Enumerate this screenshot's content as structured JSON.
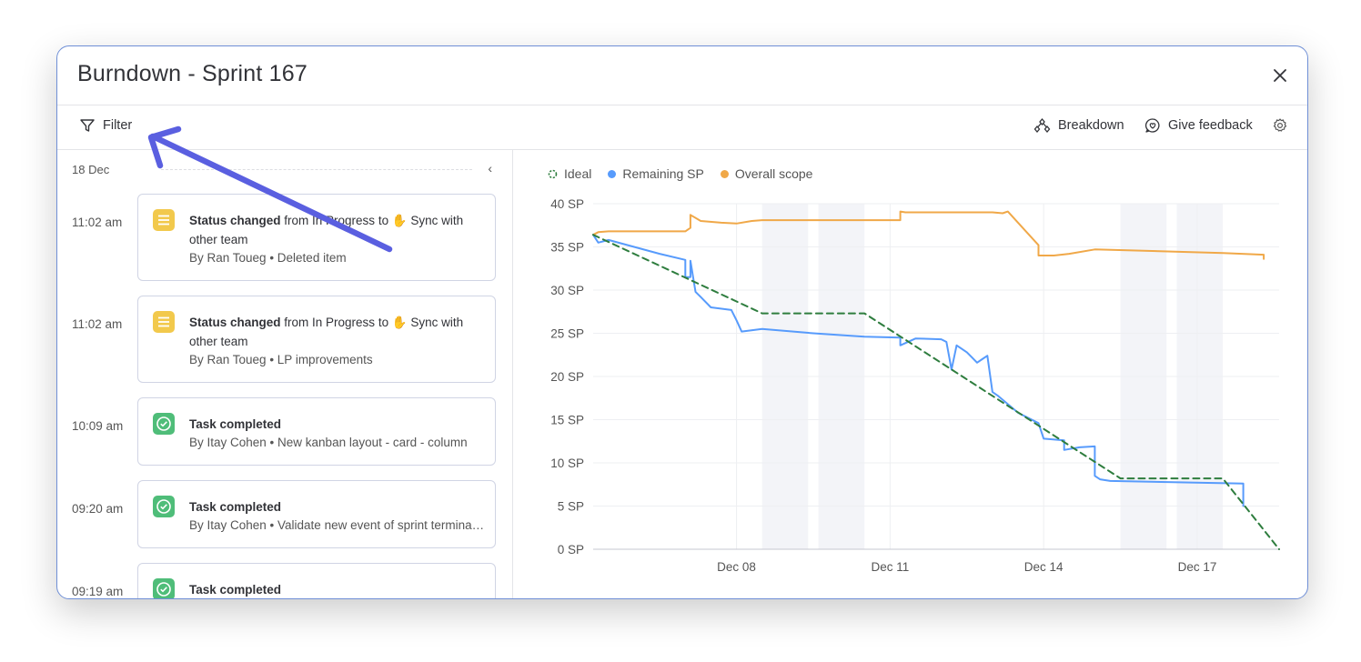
{
  "modal": {
    "title": "Burndown - Sprint 167"
  },
  "toolbar": {
    "filter_label": "Filter",
    "breakdown_label": "Breakdown",
    "feedback_label": "Give feedback"
  },
  "activity": {
    "date_label": "18 Dec",
    "items": [
      {
        "time": "11:02 am",
        "icon": "list-icon",
        "bold": "Status changed",
        "text": " from In Progress to ✋ Sync with other team",
        "by": "By Ran Toueg",
        "item": "Deleted item"
      },
      {
        "time": "11:02 am",
        "icon": "list-icon",
        "bold": "Status changed",
        "text": " from In Progress to ✋ Sync with other team",
        "by": "By Ran Toueg",
        "item": "LP improvements"
      },
      {
        "time": "10:09 am",
        "icon": "check-icon",
        "bold": "Task completed",
        "text": "",
        "by": "By Itay Cohen",
        "item": "New kanban layout - card - column"
      },
      {
        "time": "09:20 am",
        "icon": "check-icon",
        "bold": "Task completed",
        "text": "",
        "by": "By Itay Cohen",
        "item": "Validate new event of sprint termination"
      },
      {
        "time": "09:19 am",
        "icon": "check-icon",
        "bold": "Task completed",
        "text": "",
        "by": "",
        "item": ""
      }
    ]
  },
  "colors": {
    "ideal": "#2e7d3e",
    "remaining": "#579bfc",
    "scope": "#f0a848",
    "status_icon": "#f2c94c",
    "done_icon": "#4fbd79",
    "annotation_arrow": "#5a5fe0"
  },
  "chart_data": {
    "type": "line",
    "legend": [
      "Ideal",
      "Remaining SP",
      "Overall scope"
    ],
    "ylim": [
      0,
      40
    ],
    "yticks": [
      "0 SP",
      "5 SP",
      "10 SP",
      "15 SP",
      "20 SP",
      "25 SP",
      "30 SP",
      "35 SP",
      "40 SP"
    ],
    "xticks": [
      "Dec 08",
      "Dec 11",
      "Dec 14",
      "Dec 17"
    ],
    "xlim": [
      5.2,
      18.6
    ],
    "xtick_values": [
      8,
      11,
      14,
      17
    ],
    "weekend_bands": [
      [
        8.5,
        9.4
      ],
      [
        9.6,
        10.5
      ],
      [
        15.5,
        16.4
      ],
      [
        16.6,
        17.5
      ]
    ],
    "series": [
      {
        "name": "Ideal",
        "dashed": true,
        "x": [
          5.2,
          8.5,
          10.5,
          15.5,
          17.5,
          18.6
        ],
        "y": [
          36.4,
          27.3,
          27.3,
          8.2,
          8.2,
          0
        ]
      },
      {
        "name": "Remaining SP",
        "x": [
          5.2,
          5.3,
          5.5,
          6.0,
          6.5,
          7.0,
          7.0,
          7.1,
          7.1,
          7.2,
          7.3,
          7.5,
          7.9,
          8.0,
          8.1,
          8.5,
          9.5,
          10.5,
          11.2,
          11.2,
          11.5,
          12.0,
          12.1,
          12.2,
          12.3,
          12.5,
          12.6,
          12.7,
          12.8,
          12.9,
          13.0,
          13.1,
          13.5,
          13.9,
          14.0,
          14.4,
          14.4,
          14.5,
          14.7,
          15.0,
          15.0,
          15.1,
          15.3,
          17.9,
          17.9
        ],
        "y": [
          36.4,
          35.5,
          35.8,
          35.0,
          34.2,
          33.5,
          31.5,
          31.5,
          33.4,
          29.8,
          29.2,
          28.0,
          27.7,
          26.5,
          25.2,
          25.5,
          25.0,
          24.6,
          24.5,
          23.6,
          24.4,
          24.3,
          24.0,
          20.8,
          23.6,
          22.8,
          22.2,
          21.6,
          22.0,
          22.4,
          18.2,
          17.8,
          15.8,
          14.6,
          12.8,
          12.6,
          11.5,
          11.6,
          11.8,
          11.9,
          8.5,
          8.1,
          7.9,
          7.6,
          5.0
        ]
      },
      {
        "name": "Overall scope",
        "x": [
          5.2,
          5.3,
          5.5,
          6.2,
          7.0,
          7.1,
          7.1,
          7.3,
          7.7,
          8.0,
          8.3,
          8.5,
          11.2,
          11.2,
          11.3,
          12.0,
          13.0,
          13.2,
          13.3,
          13.9,
          13.9,
          14.2,
          14.5,
          15.0,
          17.5,
          18.3,
          18.3
        ],
        "y": [
          36.4,
          36.7,
          36.8,
          36.8,
          36.8,
          37.2,
          38.7,
          38.0,
          37.8,
          37.7,
          38.0,
          38.1,
          38.1,
          39.1,
          39.0,
          39.0,
          39.0,
          38.9,
          39.1,
          35.2,
          34.0,
          34.0,
          34.2,
          34.7,
          34.3,
          34.1,
          33.6
        ]
      }
    ]
  }
}
